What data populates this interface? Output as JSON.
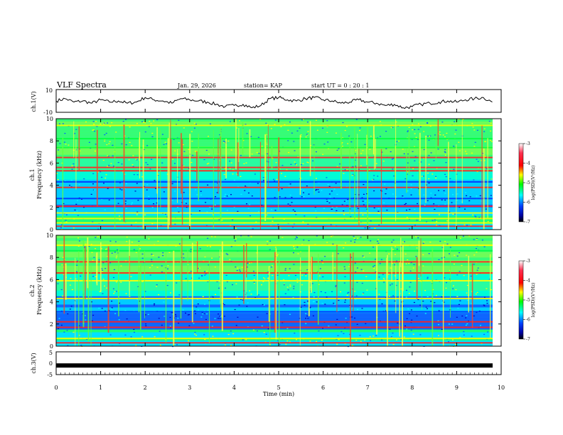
{
  "header": {
    "title": "VLF Spectra",
    "date": "Jan. 29, 2026",
    "station": "station= KAP",
    "start": "start  UT  =   0  : 20 : 1"
  },
  "colorbar": {
    "label": "log(PSD)(V²/Hz)",
    "ticks": [
      "-3",
      "-4",
      "-5",
      "-6",
      "-7"
    ],
    "colors": [
      "#ff00ff",
      "#ff0000",
      "#ff8000",
      "#ffff00",
      "#00ff00",
      "#00ffff",
      "#0080ff",
      "#0000ff",
      "#00008b",
      "#000000"
    ]
  },
  "chart_data": [
    {
      "type": "line",
      "panel": "ch1_waveform",
      "ylabel": "ch.1(V)",
      "ylim": [
        -10,
        10
      ],
      "yticks": [
        "10",
        "-10"
      ],
      "x": [
        0,
        0.2,
        0.4,
        0.6,
        0.8,
        1.0,
        1.2,
        1.4,
        1.6,
        1.8,
        2.0,
        2.2,
        2.4,
        2.6,
        2.8,
        3.0,
        3.2,
        3.4,
        3.6,
        3.8,
        4.0,
        4.2,
        4.4,
        4.6,
        4.8,
        5.0,
        5.2,
        5.4,
        5.6,
        5.8,
        6.0,
        6.2,
        6.4,
        6.6,
        6.8,
        7.0,
        7.2,
        7.4,
        7.6,
        7.8,
        8.0,
        8.2,
        8.4,
        8.6,
        8.8,
        9.0,
        9.2,
        9.4,
        9.6,
        9.8
      ],
      "values": [
        0,
        2,
        -1,
        0,
        -2,
        1,
        -1,
        0,
        -2,
        -1,
        3,
        1,
        0,
        -2,
        2,
        1,
        0,
        -1,
        -3,
        -5,
        -4,
        -3,
        -6,
        -4,
        2,
        3,
        1,
        0,
        2,
        3,
        1,
        0,
        -2,
        -1,
        1,
        -1,
        -2,
        -4,
        -3,
        -6,
        -5,
        -3,
        -2,
        -1,
        0,
        -1,
        1,
        2,
        3,
        -1
      ]
    },
    {
      "type": "heatmap",
      "panel": "ch1_spectrogram",
      "ylabel": "Frequency (kHz)",
      "panel_label": "ch.1",
      "ylim": [
        0,
        10
      ],
      "yticks": [
        "0",
        "2",
        "4",
        "6",
        "8",
        "10"
      ],
      "bands": [
        {
          "f": 0.3,
          "level": "red"
        },
        {
          "f": 0.6,
          "level": "yellow"
        },
        {
          "f": 1.0,
          "level": "yellow"
        },
        {
          "f": 1.5,
          "level": "yellow"
        },
        {
          "f": 2.1,
          "level": "red"
        },
        {
          "f": 2.8,
          "level": "blue"
        },
        {
          "f": 3.8,
          "level": "red"
        },
        {
          "f": 4.3,
          "level": "blue"
        },
        {
          "f": 5.3,
          "level": "red"
        },
        {
          "f": 5.6,
          "level": "red"
        },
        {
          "f": 6.5,
          "level": "red"
        },
        {
          "f": 7.4,
          "level": "green"
        },
        {
          "f": 8.2,
          "level": "green"
        },
        {
          "f": 9.4,
          "level": "yellow"
        }
      ]
    },
    {
      "type": "heatmap",
      "panel": "ch2_spectrogram",
      "ylabel": "Frequency (kHz)",
      "panel_label": "ch.2",
      "ylim": [
        0,
        10
      ],
      "yticks": [
        "0",
        "2",
        "4",
        "6",
        "8",
        "10"
      ],
      "bands": [
        {
          "f": 0.3,
          "level": "red"
        },
        {
          "f": 0.7,
          "level": "yellow"
        },
        {
          "f": 1.7,
          "level": "red"
        },
        {
          "f": 2.2,
          "level": "red"
        },
        {
          "f": 3.1,
          "level": "blue"
        },
        {
          "f": 4.3,
          "level": "yellow"
        },
        {
          "f": 5.9,
          "level": "yellow"
        },
        {
          "f": 6.6,
          "level": "red"
        },
        {
          "f": 7.6,
          "level": "red"
        },
        {
          "f": 8.6,
          "level": "green"
        },
        {
          "f": 9.1,
          "level": "yellow"
        }
      ]
    },
    {
      "type": "line",
      "panel": "ch3_waveform",
      "ylabel": "ch.3(V)",
      "ylim": [
        -5,
        5
      ],
      "yticks": [
        "5",
        "0",
        "-5"
      ],
      "level": -1,
      "xlabel": "Time  (min)",
      "xlim": [
        0,
        10
      ],
      "xticks": [
        "0",
        "1",
        "2",
        "3",
        "4",
        "5",
        "6",
        "7",
        "8",
        "9",
        "10"
      ]
    }
  ]
}
